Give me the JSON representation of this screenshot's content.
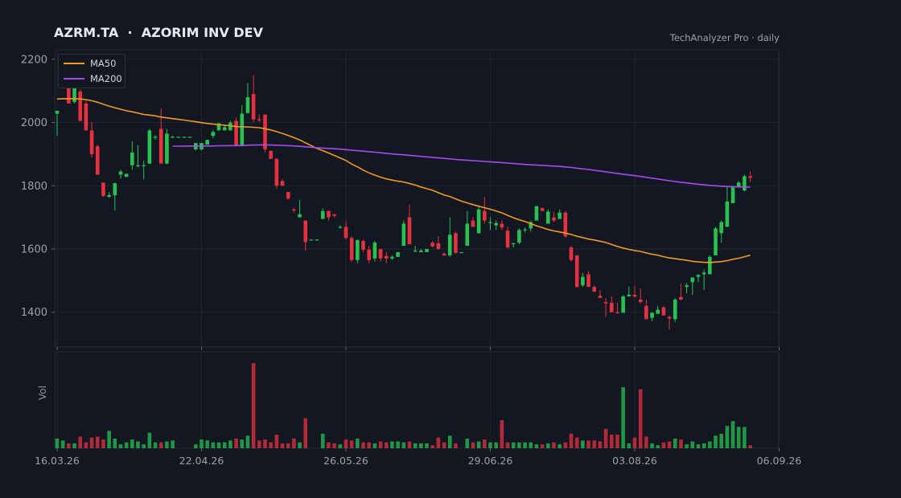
{
  "header": {
    "title": "AZRM.TA  ·  AZORIM INV DEV",
    "source": "TechAnalyzer Pro · daily"
  },
  "colors": {
    "background": "#131722",
    "grid": "#1f2430",
    "up": "#26c350",
    "down": "#e8313f",
    "ma50": "#f29a1f",
    "ma200": "#a64af2",
    "text": "#9aa1ad"
  },
  "chart_data": {
    "type": "candlestick",
    "title": "AZRM.TA  ·  AZORIM INV DEV",
    "price_ylim": [
      1290,
      2230
    ],
    "y_ticks": [
      1400,
      1600,
      1800,
      2000,
      2200
    ],
    "x_tick_labels": [
      {
        "index": 0,
        "label": "16.03.26"
      },
      {
        "index": 25,
        "label": "22.04.26"
      },
      {
        "index": 50,
        "label": "26.05.26"
      },
      {
        "index": 75,
        "label": "29.06.26"
      },
      {
        "index": 100,
        "label": "03.08.26"
      },
      {
        "index": 125,
        "label": "06.09.26"
      }
    ],
    "volume_label": "Vol",
    "legend": {
      "placement": "top-left",
      "items": [
        {
          "name": "MA50",
          "color": "#f29a1f"
        },
        {
          "name": "MA200",
          "color": "#a64af2"
        }
      ]
    },
    "grid": true,
    "candles": [
      [
        2028,
        2037,
        1958,
        2037
      ],
      [
        2110,
        2140,
        2110,
        2140
      ],
      [
        2122,
        2135,
        2060,
        2060
      ],
      [
        2065,
        2115,
        2060,
        2108
      ],
      [
        2098,
        2105,
        2005,
        2005
      ],
      [
        2060,
        2070,
        1975,
        1975
      ],
      [
        1975,
        2002,
        1890,
        1900
      ],
      [
        1925,
        1930,
        1835,
        1835
      ],
      [
        1810,
        1810,
        1765,
        1768
      ],
      [
        1765,
        1780,
        1762,
        1770
      ],
      [
        1770,
        1810,
        1722,
        1808
      ],
      [
        1835,
        1850,
        1822,
        1845
      ],
      [
        1828,
        1838,
        1828,
        1838
      ],
      [
        1865,
        1940,
        1850,
        1905
      ],
      [
        1862,
        1928,
        1858,
        1865
      ],
      [
        1862,
        1880,
        1820,
        1865
      ],
      [
        1870,
        1980,
        1870,
        1975
      ],
      [
        1952,
        1960,
        1945,
        1955
      ],
      [
        1980,
        2045,
        1870,
        1870
      ],
      [
        1870,
        1980,
        1868,
        1965
      ],
      [
        1955,
        1958,
        1955,
        1955
      ],
      [
        1955,
        1955,
        1955,
        1955
      ],
      [
        1955,
        1955,
        1955,
        1955
      ],
      [
        1955,
        1955,
        1955,
        1955
      ],
      [
        1915,
        1935,
        1912,
        1935
      ],
      [
        1915,
        1935,
        1912,
        1935
      ],
      [
        1930,
        1945,
        1930,
        1945
      ],
      [
        1958,
        1975,
        1950,
        1970
      ],
      [
        1975,
        2000,
        1975,
        1997
      ],
      [
        1975,
        1990,
        1975,
        1985
      ],
      [
        1975,
        2005,
        1975,
        2000
      ],
      [
        2005,
        2015,
        1925,
        1925
      ],
      [
        1925,
        2055,
        1925,
        2028
      ],
      [
        2030,
        2125,
        2028,
        2080
      ],
      [
        2090,
        2150,
        2000,
        2010
      ],
      [
        2010,
        2025,
        2002,
        2008
      ],
      [
        2025,
        2025,
        1905,
        1915
      ],
      [
        1910,
        1912,
        1888,
        1885
      ],
      [
        1885,
        1888,
        1790,
        1800
      ],
      [
        1815,
        1820,
        1800,
        1800
      ],
      [
        1780,
        1780,
        1755,
        1760
      ],
      [
        1725,
        1730,
        1715,
        1722
      ],
      [
        1700,
        1755,
        1700,
        1710
      ],
      [
        1690,
        1690,
        1595,
        1622
      ],
      [
        1630,
        1630,
        1630,
        1630
      ],
      [
        1630,
        1630,
        1630,
        1630
      ],
      [
        1695,
        1728,
        1695,
        1720
      ],
      [
        1720,
        1722,
        1690,
        1700
      ],
      [
        1710,
        1710,
        1700,
        1705
      ],
      [
        1670,
        1675,
        1665,
        1670
      ],
      [
        1670,
        1688,
        1630,
        1635
      ],
      [
        1635,
        1640,
        1560,
        1565
      ],
      [
        1565,
        1630,
        1555,
        1628
      ],
      [
        1625,
        1630,
        1590,
        1598
      ],
      [
        1598,
        1610,
        1555,
        1565
      ],
      [
        1570,
        1625,
        1560,
        1620
      ],
      [
        1600,
        1600,
        1560,
        1570
      ],
      [
        1578,
        1590,
        1555,
        1570
      ],
      [
        1570,
        1580,
        1565,
        1575
      ],
      [
        1575,
        1590,
        1575,
        1590
      ],
      [
        1610,
        1690,
        1610,
        1680
      ],
      [
        1700,
        1740,
        1615,
        1615
      ],
      [
        1595,
        1610,
        1590,
        1595
      ],
      [
        1590,
        1600,
        1590,
        1595
      ],
      [
        1590,
        1600,
        1590,
        1600
      ],
      [
        1620,
        1625,
        1605,
        1608
      ],
      [
        1618,
        1640,
        1598,
        1600
      ],
      [
        1585,
        1590,
        1578,
        1580
      ],
      [
        1580,
        1700,
        1575,
        1645
      ],
      [
        1650,
        1655,
        1585,
        1588
      ],
      [
        1590,
        1590,
        1590,
        1590
      ],
      [
        1610,
        1720,
        1610,
        1680
      ],
      [
        1690,
        1700,
        1670,
        1670
      ],
      [
        1650,
        1735,
        1648,
        1725
      ],
      [
        1720,
        1765,
        1680,
        1690
      ],
      [
        1682,
        1700,
        1660,
        1685
      ],
      [
        1675,
        1690,
        1660,
        1682
      ],
      [
        1680,
        1690,
        1660,
        1668
      ],
      [
        1658,
        1670,
        1600,
        1605
      ],
      [
        1615,
        1620,
        1605,
        1618
      ],
      [
        1620,
        1665,
        1615,
        1660
      ],
      [
        1660,
        1668,
        1652,
        1662
      ],
      [
        1665,
        1690,
        1655,
        1685
      ],
      [
        1690,
        1738,
        1690,
        1735
      ],
      [
        1730,
        1730,
        1720,
        1720
      ],
      [
        1680,
        1725,
        1680,
        1718
      ],
      [
        1700,
        1718,
        1685,
        1690
      ],
      [
        1695,
        1725,
        1695,
        1715
      ],
      [
        1715,
        1720,
        1635,
        1640
      ],
      [
        1605,
        1610,
        1560,
        1565
      ],
      [
        1580,
        1580,
        1478,
        1480
      ],
      [
        1485,
        1525,
        1480,
        1512
      ],
      [
        1520,
        1530,
        1480,
        1480
      ],
      [
        1480,
        1485,
        1465,
        1465
      ],
      [
        1452,
        1470,
        1445,
        1445
      ],
      [
        1432,
        1445,
        1385,
        1428
      ],
      [
        1430,
        1450,
        1405,
        1400
      ],
      [
        1400,
        1430,
        1395,
        1398
      ],
      [
        1398,
        1455,
        1398,
        1450
      ],
      [
        1450,
        1482,
        1450,
        1455
      ],
      [
        1455,
        1482,
        1445,
        1450
      ],
      [
        1440,
        1475,
        1428,
        1432
      ],
      [
        1420,
        1440,
        1378,
        1378
      ],
      [
        1382,
        1400,
        1372,
        1398
      ],
      [
        1395,
        1420,
        1395,
        1408
      ],
      [
        1415,
        1420,
        1390,
        1390
      ],
      [
        1385,
        1390,
        1345,
        1380
      ],
      [
        1378,
        1445,
        1370,
        1440
      ],
      [
        1448,
        1490,
        1438,
        1440
      ],
      [
        1480,
        1492,
        1460,
        1485
      ],
      [
        1495,
        1510,
        1455,
        1510
      ],
      [
        1512,
        1520,
        1495,
        1518
      ],
      [
        1520,
        1535,
        1470,
        1525
      ],
      [
        1520,
        1580,
        1520,
        1575
      ],
      [
        1580,
        1670,
        1580,
        1665
      ],
      [
        1650,
        1690,
        1620,
        1685
      ],
      [
        1670,
        1800,
        1670,
        1750
      ],
      [
        1745,
        1800,
        1745,
        1795
      ],
      [
        1795,
        1815,
        1795,
        1810
      ],
      [
        1785,
        1835,
        1782,
        1830
      ],
      [
        1830,
        1845,
        1812,
        1825
      ]
    ],
    "volumes": [
      10,
      8,
      5,
      5,
      12,
      6,
      11,
      12,
      9,
      18,
      10,
      4,
      6,
      9,
      7,
      4,
      16,
      6,
      6,
      7,
      8,
      0,
      0,
      0,
      4,
      9,
      8,
      6,
      6,
      6,
      8,
      10,
      9,
      13,
      88,
      8,
      9,
      6,
      14,
      5,
      5,
      10,
      6,
      31,
      0,
      0,
      15,
      6,
      5,
      4,
      9,
      8,
      10,
      6,
      6,
      5,
      7,
      6,
      7,
      7,
      6,
      7,
      5,
      5,
      5,
      3,
      11,
      6,
      13,
      5,
      0,
      10,
      6,
      7,
      9,
      6,
      6,
      29,
      6,
      6,
      6,
      6,
      6,
      4,
      4,
      5,
      6,
      4,
      6,
      15,
      11,
      8,
      8,
      8,
      7,
      20,
      14,
      14,
      63,
      5,
      11,
      61,
      12,
      5,
      3,
      6,
      7,
      10,
      9,
      4,
      7,
      4,
      5,
      7,
      13,
      15,
      23,
      28,
      22,
      22,
      3
    ],
    "vol_max": 88
  }
}
